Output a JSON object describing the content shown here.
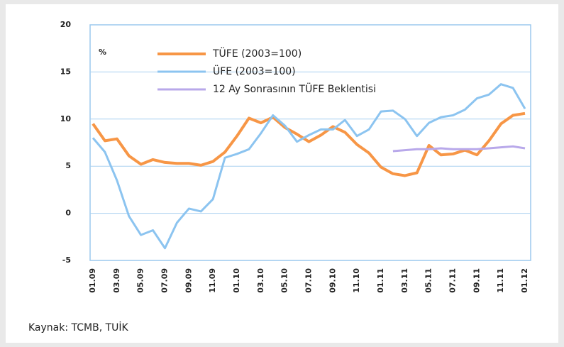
{
  "chart_data": {
    "type": "line",
    "y_label": "%",
    "source": "Kaynak:  TCMB, TUİK",
    "categories": [
      "01.09",
      null,
      "03.09",
      null,
      "05.09",
      null,
      "07.09",
      null,
      "09.09",
      null,
      "11.09",
      null,
      "01.10",
      null,
      "03.10",
      null,
      "05.10",
      null,
      "07.10",
      null,
      "09.10",
      null,
      "11.10",
      null,
      "01.11",
      null,
      "03.11",
      null,
      "05.11",
      null,
      "07.11",
      null,
      "09.11",
      null,
      "11.11",
      null,
      "01.12"
    ],
    "series": [
      {
        "name": "TÜFE (2003=100)",
        "color": "#f79646",
        "values": [
          9.5,
          7.7,
          7.9,
          6.1,
          5.2,
          5.7,
          5.4,
          5.3,
          5.3,
          5.1,
          5.5,
          6.5,
          8.2,
          10.1,
          9.6,
          10.2,
          9.1,
          8.4,
          7.6,
          8.3,
          9.2,
          8.6,
          7.3,
          6.4,
          4.9,
          4.2,
          4.0,
          4.3,
          7.2,
          6.2,
          6.3,
          6.7,
          6.2,
          7.7,
          9.5,
          10.4,
          10.6
        ]
      },
      {
        "name": "ÜFE (2003=100)",
        "color": "#8cc4f0",
        "values": [
          8.0,
          6.5,
          3.5,
          -0.3,
          -2.3,
          -1.8,
          -3.7,
          -1.0,
          0.5,
          0.2,
          1.5,
          5.9,
          6.3,
          6.8,
          8.5,
          10.4,
          9.3,
          7.6,
          8.3,
          8.9,
          8.9,
          9.9,
          8.2,
          8.9,
          10.8,
          10.9,
          10.0,
          8.2,
          9.6,
          10.2,
          10.4,
          11.0,
          12.2,
          12.6,
          13.7,
          13.3,
          11.1
        ]
      },
      {
        "name": "12 Ay Sonrasının TÜFE Beklentisi",
        "color": "#b8a8ea",
        "values": [
          null,
          null,
          null,
          null,
          null,
          null,
          null,
          null,
          null,
          null,
          null,
          null,
          null,
          null,
          null,
          null,
          null,
          null,
          null,
          null,
          null,
          null,
          null,
          null,
          null,
          6.6,
          6.7,
          6.8,
          6.8,
          6.9,
          6.8,
          6.8,
          6.8,
          6.9,
          7.0,
          7.1,
          6.9
        ]
      }
    ],
    "ylim": [
      -5,
      20
    ],
    "yticks": [
      -5,
      0,
      5,
      10,
      15,
      20
    ],
    "grid": true,
    "legend": "upper left"
  }
}
